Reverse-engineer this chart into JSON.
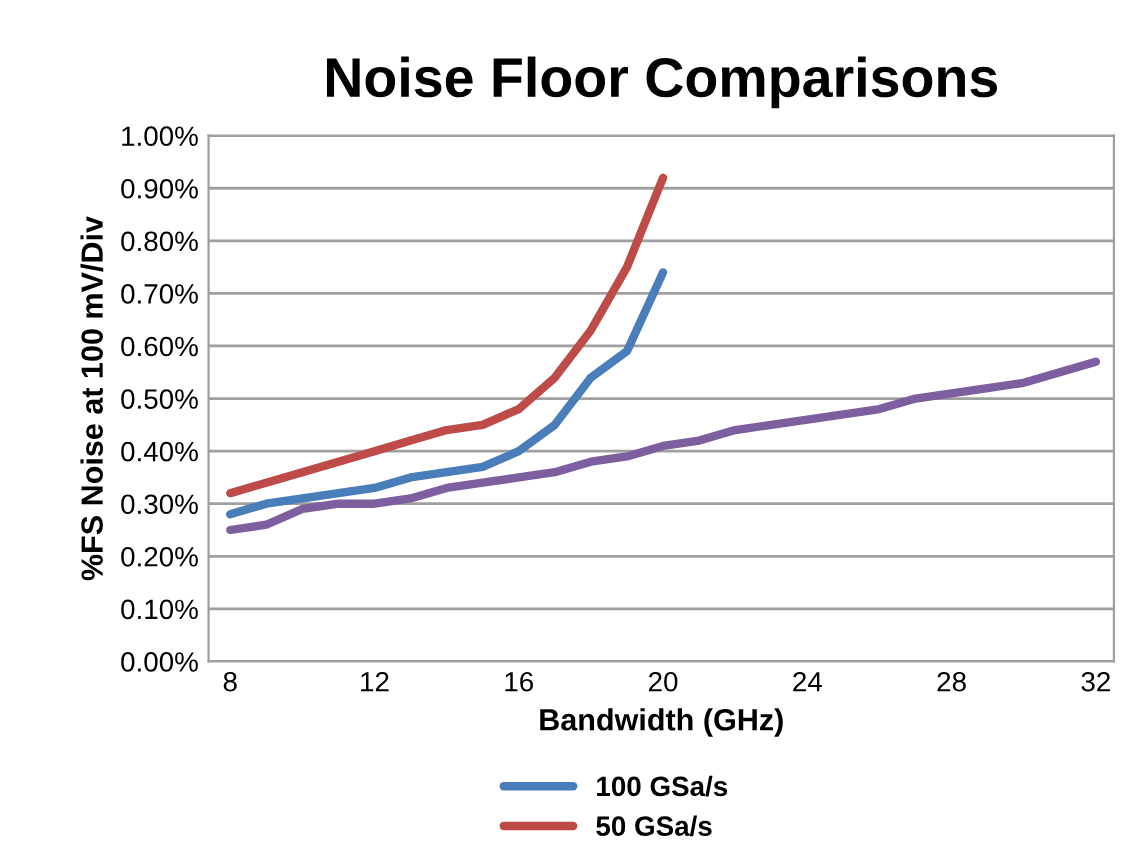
{
  "chart_data": {
    "type": "line",
    "title": "Noise Floor Comparisons",
    "xlabel": "Bandwidth (GHz)",
    "ylabel": "%FS Noise at 100 mV/Div",
    "xlim": [
      7.4,
      32.5
    ],
    "xticks": [
      8,
      12,
      16,
      20,
      24,
      28,
      32
    ],
    "ylim": [
      0,
      1.0
    ],
    "yticks": [
      {
        "value": 0,
        "label": "0.00%"
      },
      {
        "value": 0.1,
        "label": "0.10%"
      },
      {
        "value": 0.2,
        "label": "0.20%"
      },
      {
        "value": 0.3,
        "label": "0.30%"
      },
      {
        "value": 0.4,
        "label": "0.40%"
      },
      {
        "value": 0.5,
        "label": "0.50%"
      },
      {
        "value": 0.6,
        "label": "0.60%"
      },
      {
        "value": 0.7,
        "label": "0.70%"
      },
      {
        "value": 0.8,
        "label": "0.80%"
      },
      {
        "value": 0.9,
        "label": "0.90%"
      },
      {
        "value": 1.0,
        "label": "1.00%"
      }
    ],
    "grid": "y",
    "legend": "bottom",
    "marker": "none",
    "line_style": "solid",
    "series": [
      {
        "name": "100 GSa/s",
        "color": "#4a7ebb",
        "x": [
          8,
          9,
          10,
          11,
          12,
          13,
          14,
          15,
          16,
          17,
          18,
          19,
          20
        ],
        "values": [
          0.28,
          0.3,
          0.31,
          0.32,
          0.33,
          0.35,
          0.36,
          0.37,
          0.4,
          0.45,
          0.54,
          0.59,
          0.74
        ]
      },
      {
        "name": "50 GSa/s",
        "color": "#be4b48",
        "x": [
          8,
          9,
          10,
          11,
          12,
          13,
          14,
          15,
          16,
          17,
          18,
          19,
          20
        ],
        "values": [
          0.32,
          0.34,
          0.36,
          0.38,
          0.4,
          0.42,
          0.44,
          0.45,
          0.48,
          0.54,
          0.63,
          0.75,
          0.92
        ]
      },
      {
        "color": "#7d5fa0",
        "x": [
          8,
          9,
          10,
          11,
          12,
          13,
          14,
          15,
          16,
          17,
          18,
          19,
          20,
          21,
          22,
          23,
          24,
          25,
          26,
          27,
          28,
          29,
          30,
          31,
          32
        ],
        "values": [
          0.25,
          0.26,
          0.29,
          0.3,
          0.3,
          0.31,
          0.33,
          0.34,
          0.35,
          0.36,
          0.38,
          0.39,
          0.41,
          0.42,
          0.44,
          0.45,
          0.46,
          0.47,
          0.48,
          0.5,
          0.51,
          0.52,
          0.53,
          0.55,
          0.57
        ]
      }
    ]
  }
}
